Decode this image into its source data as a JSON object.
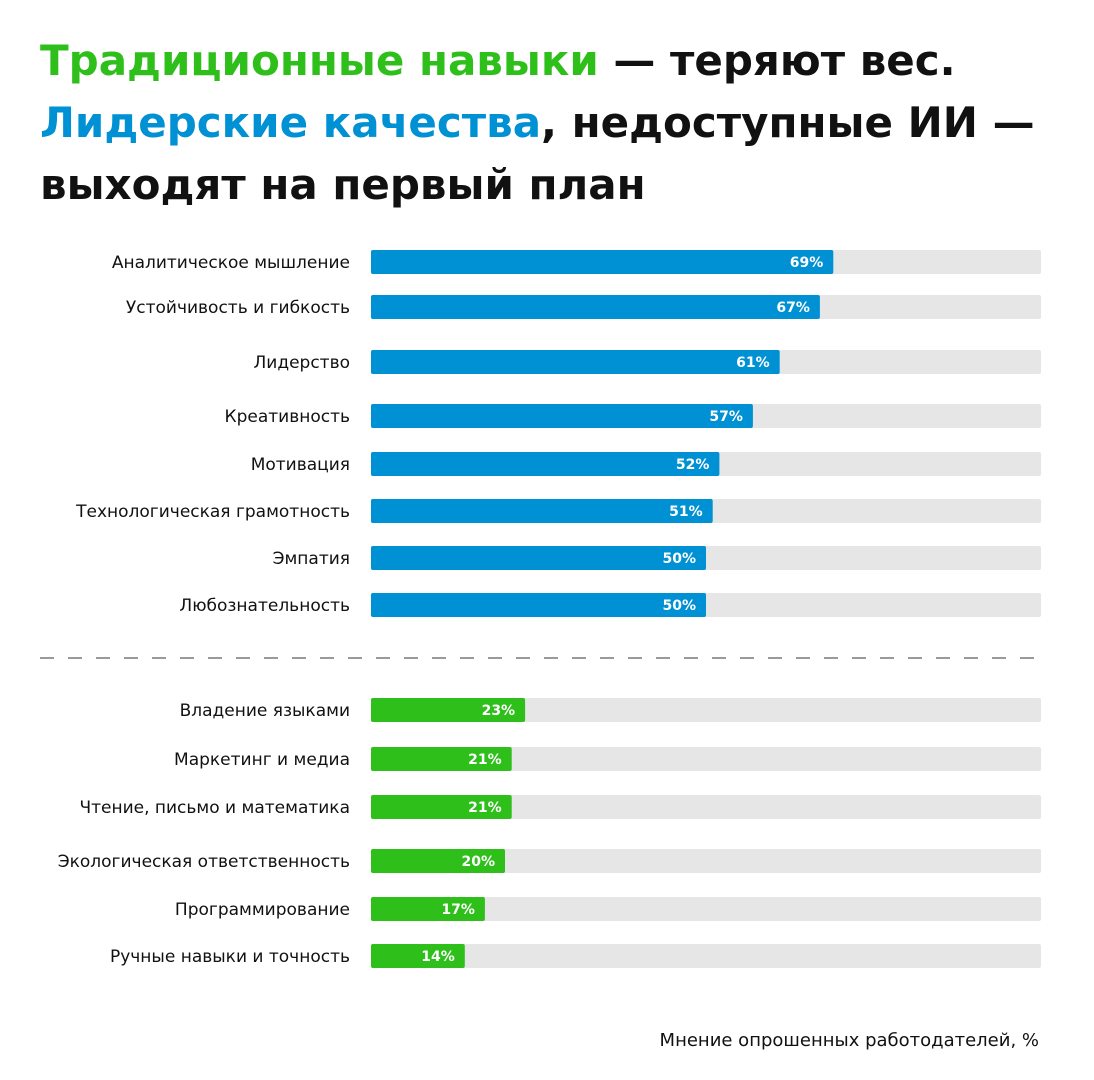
{
  "title": {
    "part1_highlight": "Традиционные навыки",
    "part1_rest": " — теряют вес.",
    "part2_highlight": "Лидерские качества",
    "part2_rest": ", недоступные ИИ — выходят на первый план"
  },
  "footnote": "Мнение опрошенных работодателей, %",
  "colors": {
    "green": "#2ebf1b",
    "blue": "#0090d4",
    "track": "#e6e6e6",
    "divider": "#9a9a9a"
  },
  "chart_data": {
    "type": "bar",
    "orientation": "horizontal",
    "xlim": [
      0,
      100
    ],
    "value_suffix": "%",
    "groups": [
      {
        "color": "#0090d4",
        "categories": [
          "Аналитическое мышление",
          "Устойчивость и гибкость",
          "Лидерство",
          "Креативность",
          "Мотивация",
          "Технологическая грамотность",
          "Эмпатия",
          "Любознательность"
        ],
        "values": [
          69,
          67,
          61,
          57,
          52,
          51,
          50,
          50
        ],
        "labels": [
          "69%",
          "67%",
          "61%",
          "57%",
          "52%",
          "51%",
          "50%",
          "50%"
        ]
      },
      {
        "color": "#2ebf1b",
        "categories": [
          "Владение языками",
          "Маркетинг и медиа",
          "Чтение, письмо и математика",
          "Экологическая ответственность",
          "Программирование",
          "Ручные навыки и точность"
        ],
        "values": [
          23,
          21,
          21,
          20,
          17,
          14
        ],
        "labels": [
          "23%",
          "21%",
          "21%",
          "20%",
          "17%",
          "14%"
        ]
      }
    ]
  }
}
